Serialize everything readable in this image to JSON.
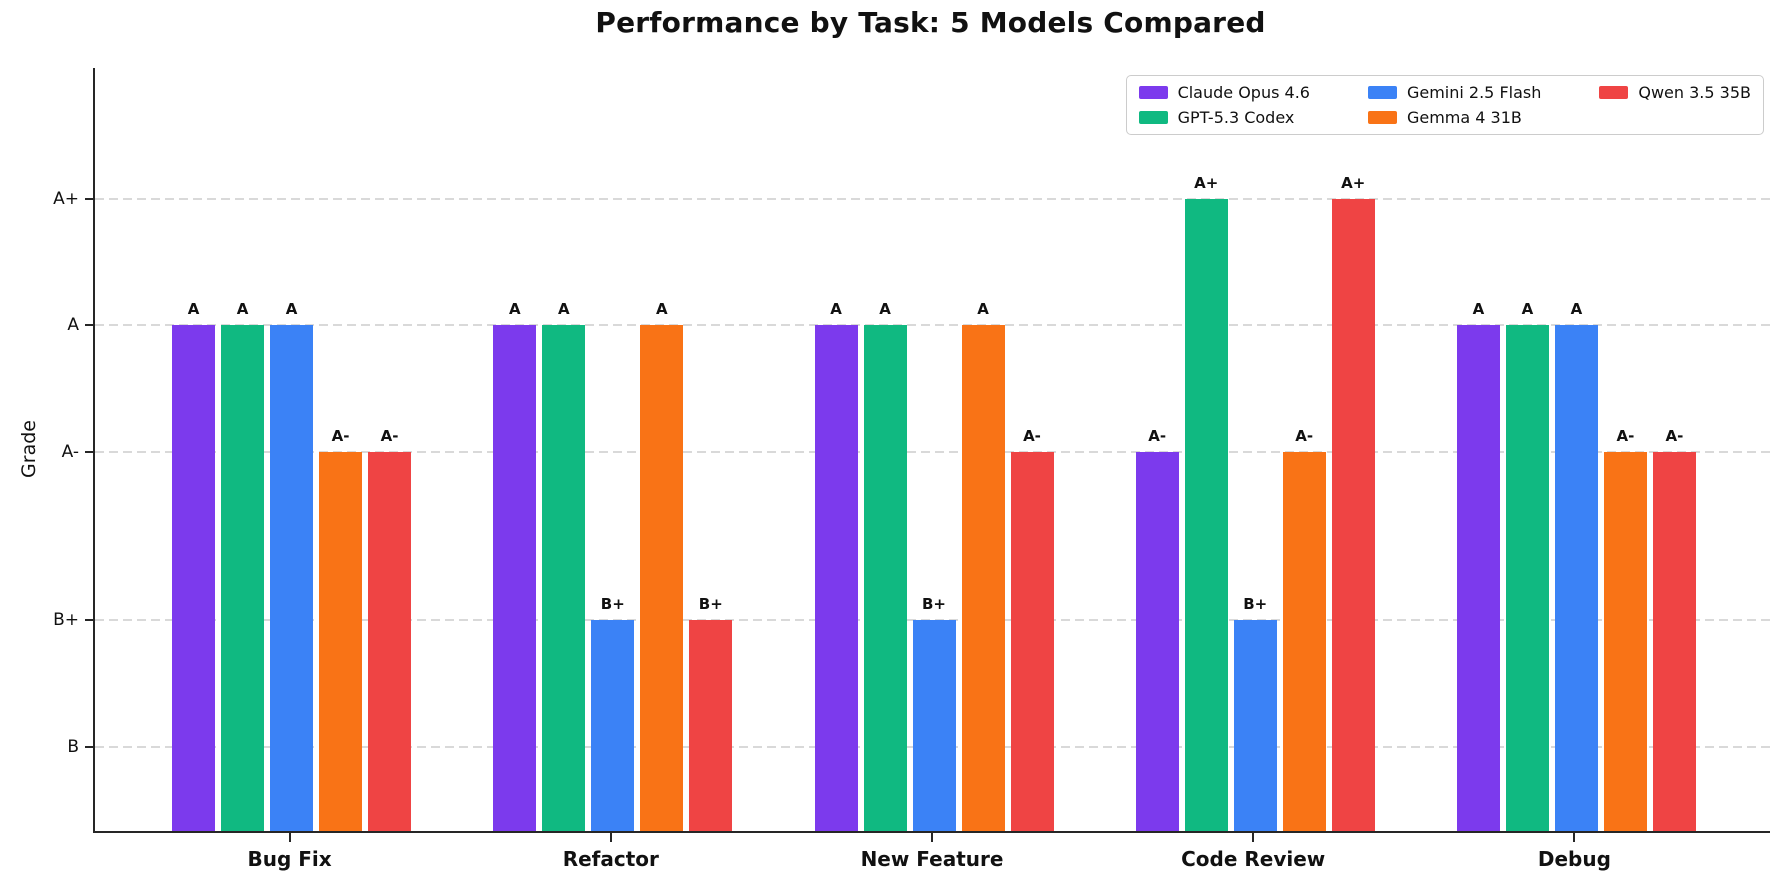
{
  "chart_data": {
    "type": "bar",
    "title": "Performance by Task: 5 Models Compared",
    "ylabel": "Grade",
    "xlabel": "",
    "categories": [
      "Bug Fix",
      "Refactor",
      "New Feature",
      "Code Review",
      "Debug"
    ],
    "series": [
      {
        "name": "Claude Opus 4.6",
        "color": "#7C3AED",
        "grades": [
          "A",
          "A",
          "A",
          "A-",
          "A"
        ]
      },
      {
        "name": "GPT-5.3 Codex",
        "color": "#10B981",
        "grades": [
          "A",
          "A",
          "A",
          "A+",
          "A"
        ]
      },
      {
        "name": "Gemini 2.5 Flash",
        "color": "#3B82F6",
        "grades": [
          "A",
          "B+",
          "B+",
          "B+",
          "A"
        ]
      },
      {
        "name": "Gemma 4 31B",
        "color": "#F97316",
        "grades": [
          "A-",
          "A",
          "A",
          "A-",
          "A-"
        ]
      },
      {
        "name": "Qwen 3.5 35B",
        "color": "#EF4444",
        "grades": [
          "A-",
          "B+",
          "A-",
          "A+",
          "A-"
        ]
      }
    ],
    "grade_scale": {
      "A+": 4.3,
      "A": 4.0,
      "A-": 3.7,
      "B+": 3.3,
      "B": 3.0
    },
    "yticks": [
      "A+",
      "A",
      "A-",
      "B+",
      "B"
    ],
    "ylim": [
      2.8,
      4.61
    ],
    "grid": "dashed-horizontal",
    "legend_position": "upper-right",
    "bar_value_labels": true
  }
}
